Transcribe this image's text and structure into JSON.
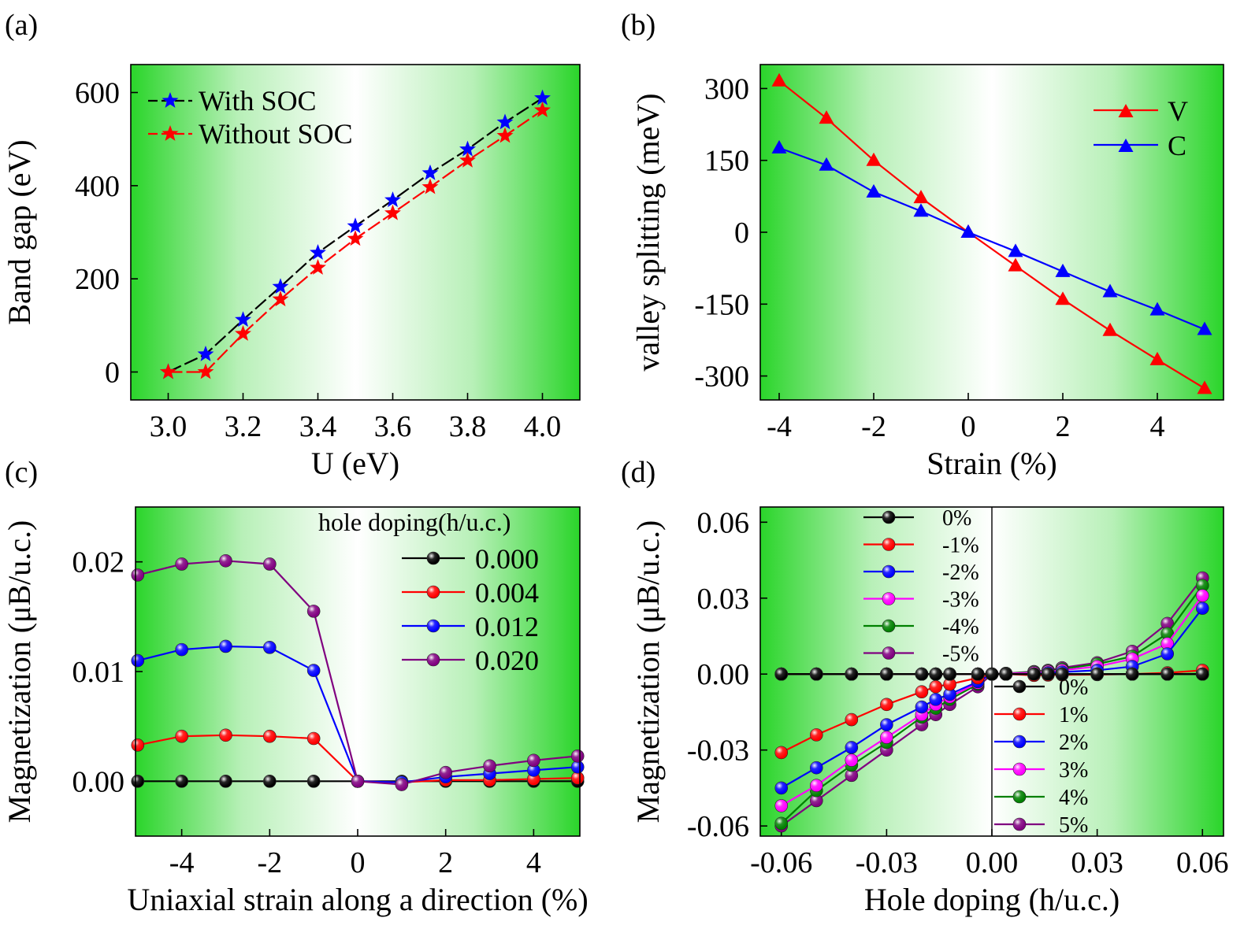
{
  "chart_data": [
    {
      "panel": "(a)",
      "type": "line",
      "xlabel": "U (eV)",
      "ylabel": "Band gap (eV)",
      "xlim": [
        2.9,
        4.1
      ],
      "ylim": [
        -60,
        660
      ],
      "xticks": [
        3.0,
        3.2,
        3.4,
        3.6,
        3.8,
        4.0
      ],
      "xticklabels": [
        "3.0",
        "3.2",
        "3.4",
        "3.6",
        "3.8",
        "4.0"
      ],
      "yticks": [
        0,
        200,
        400,
        600
      ],
      "yticklabels": [
        "0",
        "200",
        "400",
        "600"
      ],
      "legend_position": "top-left",
      "x": [
        3.0,
        3.1,
        3.2,
        3.3,
        3.4,
        3.5,
        3.6,
        3.7,
        3.8,
        3.9,
        4.0
      ],
      "series": [
        {
          "name": "With SOC",
          "marker": "star",
          "color": "#0000ff",
          "line_color": "#000000",
          "values": [
            0,
            38,
            112,
            183,
            256,
            313,
            369,
            427,
            478,
            536,
            588
          ]
        },
        {
          "name": "Without SOC",
          "marker": "star",
          "color": "#ff0000",
          "line_color": "#ff0000",
          "values": [
            0,
            0,
            82,
            156,
            224,
            286,
            341,
            397,
            454,
            507,
            562
          ]
        }
      ]
    },
    {
      "panel": "(b)",
      "type": "line",
      "xlabel": "Strain (%)",
      "ylabel": "valley splitting (meV)",
      "xlim": [
        -4.4,
        5.4
      ],
      "ylim": [
        -350,
        350
      ],
      "xticks": [
        -4,
        -2,
        0,
        2,
        4
      ],
      "xticklabels": [
        "-4",
        "-2",
        "0",
        "2",
        "4"
      ],
      "yticks": [
        300,
        150,
        0,
        -150,
        -300
      ],
      "yticklabels": [
        "300",
        "150",
        "0",
        "-150",
        "-300"
      ],
      "legend_position": "top-right",
      "x": [
        -4,
        -3,
        -2,
        -1,
        0,
        1,
        2,
        3,
        4,
        5
      ],
      "series": [
        {
          "name": "V",
          "marker": "triangle",
          "color": "#ff0000",
          "values": [
            316,
            238,
            150,
            72,
            0,
            -70,
            -140,
            -205,
            -266,
            -326
          ]
        },
        {
          "name": "C",
          "marker": "triangle",
          "color": "#0000ff",
          "values": [
            176,
            140,
            84,
            44,
            0,
            -40,
            -82,
            -124,
            -162,
            -203
          ]
        }
      ]
    },
    {
      "panel": "(c)",
      "type": "line",
      "xlabel": "Uniaxial strain along a direction (%)",
      "ylabel": "Magnetization (μB/u.c.)",
      "xlim": [
        -5.05,
        5.05
      ],
      "ylim": [
        -0.005,
        0.025
      ],
      "xticks": [
        -4,
        -2,
        0,
        2,
        4
      ],
      "xticklabels": [
        "-4",
        "-2",
        "0",
        "2",
        "4"
      ],
      "yticks": [
        0.0,
        0.01,
        0.02
      ],
      "yticklabels": [
        "0.00",
        "0.01",
        "0.02"
      ],
      "legend_title": "hole doping(h/u.c.)",
      "legend_position": "top-right",
      "x": [
        -5,
        -4,
        -3,
        -2,
        -1,
        0,
        1,
        2,
        3,
        4,
        5
      ],
      "series": [
        {
          "name": "0.000",
          "color": "#000000",
          "values": [
            0,
            0,
            0,
            0,
            0,
            0,
            0,
            0,
            0,
            0,
            0
          ]
        },
        {
          "name": "0.004",
          "color": "#ff0000",
          "values": [
            0.0033,
            0.0041,
            0.0042,
            0.0041,
            0.0039,
            0,
            -0.0001,
            0.0001,
            0.0001,
            0.0002,
            0.0003
          ]
        },
        {
          "name": "0.012",
          "color": "#0000ff",
          "values": [
            0.011,
            0.012,
            0.0123,
            0.0122,
            0.0101,
            0,
            -0.0001,
            0.0004,
            0.0007,
            0.001,
            0.0013
          ]
        },
        {
          "name": "0.020",
          "color": "#800080",
          "values": [
            0.0188,
            0.0198,
            0.0201,
            0.0198,
            0.0155,
            0,
            -0.0003,
            0.0008,
            0.0014,
            0.0019,
            0.0023
          ]
        }
      ]
    },
    {
      "panel": "(d)",
      "type": "line",
      "xlabel": "Hole doping (h/u.c.)",
      "ylabel": "Magnetization (μB/u.c.)",
      "xlim": [
        -0.066,
        0.066
      ],
      "ylim": [
        -0.064,
        0.066
      ],
      "xticks": [
        -0.06,
        -0.03,
        0.0,
        0.03,
        0.06
      ],
      "xticklabels": [
        "-0.06",
        "-0.03",
        "0.00",
        "0.03",
        "0.06"
      ],
      "yticks": [
        0.06,
        0.03,
        0.0,
        -0.03,
        -0.06
      ],
      "yticklabels": [
        "0.06",
        "0.03",
        "0.00",
        "-0.03",
        "-0.06"
      ],
      "legend_position": "top-left and center",
      "x": [
        -0.06,
        -0.05,
        -0.04,
        -0.03,
        -0.02,
        -0.016,
        -0.012,
        -0.004,
        0.0,
        0.004,
        0.012,
        0.016,
        0.02,
        0.03,
        0.04,
        0.05,
        0.06
      ],
      "series": [
        {
          "name": "0%",
          "color": "#000000",
          "values": [
            0,
            0,
            0,
            0,
            0,
            0,
            0,
            0,
            0,
            0,
            0,
            0,
            0,
            0,
            0,
            0,
            0
          ]
        },
        {
          "name": "-1%",
          "color": "#ff0000",
          "values": [
            0,
            0,
            0,
            0,
            0,
            0,
            0,
            0,
            0,
            0,
            0,
            0,
            0,
            0,
            0,
            0,
            0
          ]
        },
        {
          "name": "-2%",
          "color": "#0000ff",
          "values": [
            0,
            0,
            0,
            0,
            0,
            0,
            0,
            0,
            0,
            0,
            0,
            0,
            0,
            0,
            0,
            0,
            0
          ]
        },
        {
          "name": "-3%",
          "color": "#ff00ff",
          "values": [
            0,
            0,
            0,
            0,
            0,
            0,
            0,
            0,
            0,
            0,
            0,
            0,
            0,
            0,
            0,
            0,
            0
          ]
        },
        {
          "name": "-4%",
          "color": "#008000",
          "values": [
            0,
            0,
            0,
            0,
            0,
            0,
            0,
            0,
            0,
            0,
            0,
            0,
            0,
            0,
            0,
            0,
            0
          ]
        },
        {
          "name": "-5%",
          "color": "#800080",
          "values": [
            0,
            0,
            0,
            0,
            0,
            0,
            0,
            0,
            0,
            0,
            0,
            0,
            0,
            0,
            0,
            0,
            0
          ]
        },
        {
          "name": "0%",
          "color": "#000000",
          "values": [
            0,
            0,
            0,
            0,
            0,
            0,
            0,
            0,
            0,
            0,
            0,
            0,
            0,
            0,
            0,
            0,
            0
          ]
        },
        {
          "name": "1%",
          "color": "#ff0000",
          "values": [
            -0.031,
            -0.024,
            -0.018,
            -0.012,
            -0.007,
            -0.005,
            -0.004,
            -0.0015,
            0,
            0,
            -0.0005,
            -0.0004,
            -0.0003,
            -0.0002,
            0,
            0.0005,
            0.0015
          ]
        },
        {
          "name": "2%",
          "color": "#0000ff",
          "values": [
            -0.045,
            -0.037,
            -0.029,
            -0.02,
            -0.013,
            -0.01,
            -0.008,
            -0.003,
            0,
            0,
            0,
            0.0005,
            0.0008,
            0.0015,
            0.003,
            0.008,
            0.026
          ]
        },
        {
          "name": "3%",
          "color": "#ff00ff",
          "values": [
            -0.052,
            -0.044,
            -0.034,
            -0.025,
            -0.016,
            -0.012,
            -0.009,
            -0.0035,
            0,
            0.0002,
            0.0005,
            0.001,
            0.0015,
            0.003,
            0.006,
            0.012,
            0.031
          ]
        },
        {
          "name": "4%",
          "color": "#008000",
          "values": [
            -0.059,
            -0.046,
            -0.036,
            -0.027,
            -0.017,
            -0.0135,
            -0.01,
            -0.004,
            0,
            0.0003,
            0.0008,
            0.0012,
            0.002,
            0.004,
            0.007,
            0.016,
            0.035
          ]
        },
        {
          "name": "5%",
          "color": "#800080",
          "values": [
            -0.06,
            -0.05,
            -0.04,
            -0.03,
            -0.02,
            -0.016,
            -0.012,
            -0.005,
            0,
            0.0003,
            0.001,
            0.0015,
            0.0025,
            0.0045,
            0.009,
            0.02,
            0.038
          ]
        }
      ]
    }
  ]
}
